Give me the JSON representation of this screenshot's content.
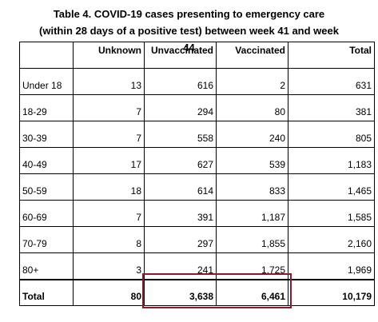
{
  "title": "Table 4. COVID-19 cases presenting to emergency care (within 28 days of a positive test) between week 41 and week 44",
  "table": {
    "header": [
      "",
      "Unknown",
      "Unvaccinated",
      "Vaccinated",
      "Total"
    ],
    "rows": [
      [
        "Under 18",
        "13",
        "616",
        "2",
        "631"
      ],
      [
        "18-29",
        "7",
        "294",
        "80",
        "381"
      ],
      [
        "30-39",
        "7",
        "558",
        "240",
        "805"
      ],
      [
        "40-49",
        "17",
        "627",
        "539",
        "1,183"
      ],
      [
        "50-59",
        "18",
        "614",
        "833",
        "1,465"
      ],
      [
        "60-69",
        "7",
        "391",
        "1,187",
        "1,585"
      ],
      [
        "70-79",
        "8",
        "297",
        "1,855",
        "2,160"
      ],
      [
        "80+",
        "3",
        "241",
        "1,725",
        "1,969"
      ]
    ],
    "total": [
      "Total",
      "80",
      "3,638",
      "6,461",
      "10,179"
    ]
  }
}
